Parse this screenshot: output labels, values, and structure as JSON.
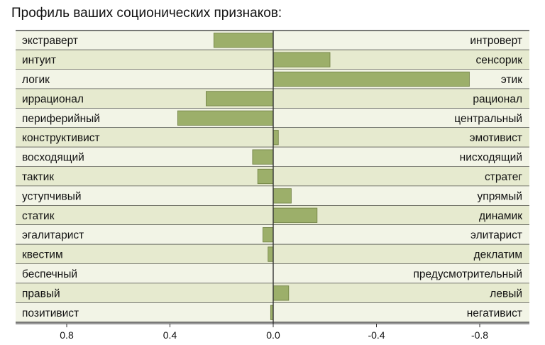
{
  "chart_data": {
    "type": "bar",
    "orientation": "horizontal",
    "title": "Профиль ваших соционических признаков:",
    "categories_left": [
      "экстраверт",
      "интуит",
      "логик",
      "иррационал",
      "периферийный",
      "конструктивист",
      "восходящий",
      "тактик",
      "уступчивый",
      "статик",
      "эгалитарист",
      "квестим",
      "беспечный",
      "правый",
      "позитивист"
    ],
    "categories_right": [
      "интроверт",
      "сенсорик",
      "этик",
      "рационал",
      "центральный",
      "эмотивист",
      "нисходящий",
      "стратег",
      "упрямый",
      "динамик",
      "элитарист",
      "деклатим",
      "предусмотрительный",
      "левый",
      "негативист"
    ],
    "values": [
      0.23,
      -0.22,
      -0.76,
      0.26,
      0.37,
      -0.02,
      0.08,
      0.06,
      -0.07,
      -0.17,
      0.04,
      0.02,
      0.0,
      -0.06,
      0.01
    ],
    "x_ticks": [
      "0.8",
      "0.4",
      "0.0",
      "-0.4",
      "-0.8"
    ],
    "xlim": [
      1.0,
      -1.0
    ],
    "grid": false,
    "colors": {
      "bar_fill": "#9caf6a",
      "bar_stroke": "#6f7f42",
      "row_light": "#f2f4e6",
      "row_dark": "#e6eacf",
      "axis": "#333333"
    }
  }
}
